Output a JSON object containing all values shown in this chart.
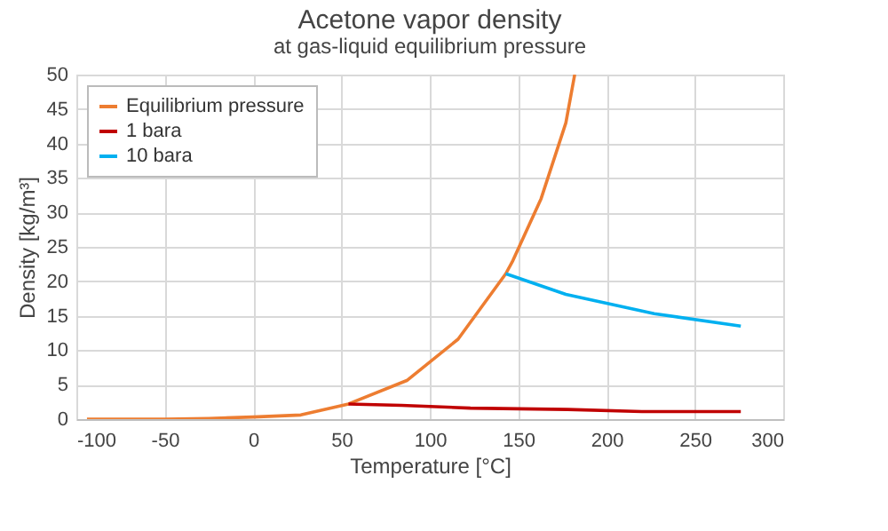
{
  "chart_data": {
    "type": "line",
    "title": "Acetone vapor density",
    "subtitle": "at gas-liquid equilibrium pressure",
    "xlabel": "Temperature [°C]",
    "ylabel": "Density [kg/m³]",
    "series": [
      {
        "name": "Equilibrium pressure",
        "color": "#ed7d31",
        "x": [
          -94,
          -50,
          -25,
          0,
          27,
          54,
          87,
          116,
          143,
          147,
          163,
          177,
          182
        ],
        "values": [
          0,
          0,
          0.1,
          0.3,
          0.6,
          2.2,
          5.6,
          11.6,
          21.1,
          23,
          32,
          43,
          50
        ]
      },
      {
        "name": "1 bara",
        "color": "#c00000",
        "x": [
          54,
          84,
          123,
          178,
          220,
          276
        ],
        "values": [
          2.2,
          2.0,
          1.6,
          1.4,
          1.1,
          1.1
        ]
      },
      {
        "name": "10 bara",
        "color": "#00b0f0",
        "x": [
          143,
          177,
          227,
          276
        ],
        "values": [
          21.1,
          18.1,
          15.3,
          13.5
        ]
      }
    ],
    "xlim": [
      -100,
      300
    ],
    "xticks": [
      -100,
      -50,
      0,
      50,
      100,
      150,
      200,
      250,
      300
    ],
    "ylim": [
      0,
      50
    ],
    "yticks": [
      0,
      5,
      10,
      15,
      20,
      25,
      30,
      35,
      40,
      45,
      50
    ],
    "grid": true,
    "legend": "top left"
  }
}
